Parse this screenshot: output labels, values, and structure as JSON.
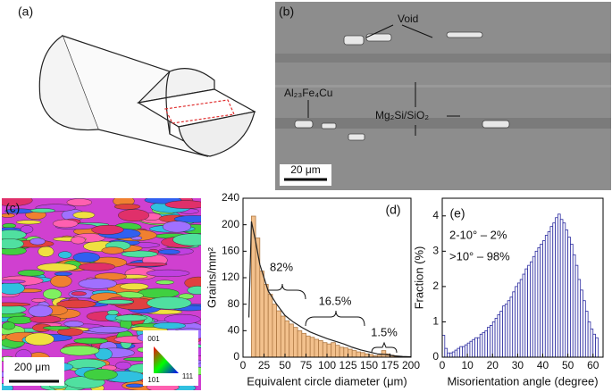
{
  "panels": {
    "a": {
      "label": "(a)"
    },
    "b": {
      "label": "(b)",
      "annotations": [
        "Void",
        "Al₂₃Fe₄Cu",
        "Mg₂Si/SiO₂"
      ],
      "scale_bar": "20 μm"
    },
    "c": {
      "label": "(c)",
      "scale_bar": "200 μm",
      "ipf": [
        "001",
        "101",
        "111"
      ]
    }
  },
  "chart_data": [
    {
      "type": "histogram",
      "panel": "(d)",
      "xlabel": "Equivalent circle diameter (μm)",
      "ylabel": "Grains/mm²",
      "bins": [
        10,
        15,
        20,
        25,
        30,
        35,
        40,
        45,
        50,
        55,
        60,
        65,
        70,
        75,
        80,
        85,
        90,
        95,
        100,
        105,
        110,
        115,
        120,
        125,
        130,
        135,
        140,
        145,
        150,
        155,
        160,
        165,
        170,
        175,
        180,
        185
      ],
      "values": [
        213,
        180,
        130,
        110,
        95,
        80,
        70,
        62,
        55,
        50,
        45,
        40,
        36,
        32,
        30,
        27,
        25,
        22,
        20,
        22,
        18,
        15,
        14,
        12,
        10,
        8,
        7,
        5,
        4,
        2,
        3,
        10,
        5,
        3,
        1
      ],
      "color": "#f2c08c",
      "edge": "#b07a45",
      "xlim": [
        0,
        200
      ],
      "ylim": [
        0,
        240
      ],
      "xticks": [
        0,
        25,
        50,
        75,
        100,
        125,
        150,
        175,
        200
      ],
      "yticks": [
        0,
        40,
        80,
        120,
        160,
        200,
        240
      ],
      "fit": {
        "x": [
          7,
          10,
          15,
          20,
          30,
          40,
          50,
          60,
          70,
          80,
          90,
          100,
          110,
          120,
          130,
          140,
          150,
          160,
          170,
          180,
          190,
          200
        ],
        "values": [
          60,
          205,
          175,
          140,
          100,
          80,
          63,
          53,
          45,
          38,
          33,
          28,
          24,
          20,
          15,
          11,
          8,
          5,
          4,
          2,
          1,
          0.5
        ]
      },
      "annotations": [
        "82%",
        "16.5%",
        "1.5%"
      ]
    },
    {
      "type": "histogram",
      "panel": "(e)",
      "xlabel": "Misorientation angle (degree)",
      "ylabel": "Fraction (%)",
      "bins": [
        0,
        1,
        2,
        3,
        4,
        5,
        6,
        7,
        8,
        9,
        10,
        11,
        12,
        13,
        14,
        15,
        16,
        17,
        18,
        19,
        20,
        21,
        22,
        23,
        24,
        25,
        26,
        27,
        28,
        29,
        30,
        31,
        32,
        33,
        34,
        35,
        36,
        37,
        38,
        39,
        40,
        41,
        42,
        43,
        44,
        45,
        46,
        47,
        48,
        49,
        50,
        51,
        52,
        53,
        54,
        55,
        56,
        57,
        58,
        59,
        60,
        61,
        62
      ],
      "values": [
        0.62,
        0.25,
        0.12,
        0.12,
        0.15,
        0.2,
        0.25,
        0.3,
        0.3,
        0.35,
        0.4,
        0.45,
        0.5,
        0.55,
        0.55,
        0.65,
        0.7,
        0.75,
        0.85,
        0.9,
        1.0,
        1.1,
        1.2,
        1.3,
        1.45,
        1.5,
        1.6,
        1.7,
        1.85,
        2.0,
        2.1,
        2.2,
        2.35,
        2.5,
        2.6,
        2.7,
        2.85,
        3.0,
        3.1,
        3.2,
        3.3,
        3.45,
        3.55,
        3.7,
        3.8,
        3.95,
        4.05,
        3.9,
        3.8,
        3.6,
        3.4,
        3.2,
        2.9,
        2.6,
        2.2,
        1.9,
        1.6,
        1.3,
        1.0,
        0.8,
        0.65,
        0.55
      ],
      "color": "#ffffff",
      "edge": "#2b2ba0",
      "xlim": [
        0,
        64
      ],
      "ylim": [
        0,
        4.5
      ],
      "xticks": [
        0,
        10,
        20,
        30,
        40,
        50,
        60
      ],
      "yticks": [
        0,
        1,
        2,
        3,
        4
      ],
      "annotations": [
        "2-10° – 2%",
        ">10° – 98%"
      ]
    }
  ]
}
